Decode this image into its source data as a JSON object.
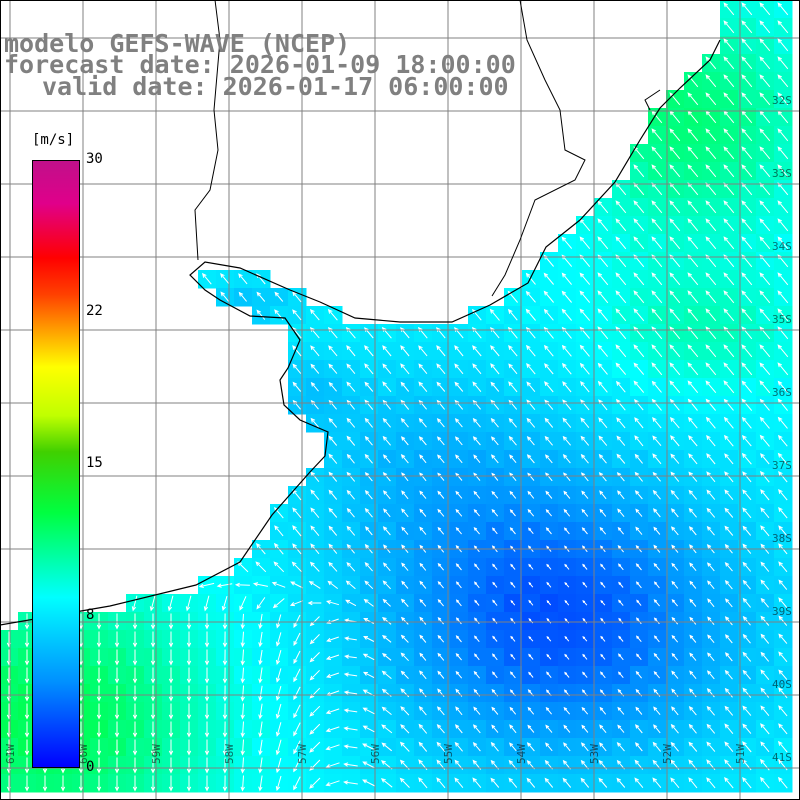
{
  "title": {
    "line1": "modelo GEFS-WAVE (NCEP)",
    "line2": "forecast date: 2026-01-09 18:00:00",
    "line3": "valid date: 2026-01-17 06:00:00"
  },
  "colorbar": {
    "unit": "[m/s]",
    "ticks": [
      "30",
      "22",
      "15",
      "8",
      "0"
    ],
    "min": 0,
    "max": 30,
    "colors": [
      "#0000ff",
      "#0090ff",
      "#00ffff",
      "#00ff40",
      "#40d000",
      "#ffff00",
      "#ff0000",
      "#c0108a"
    ]
  },
  "map": {
    "variable": "wind speed and direction (arrows)",
    "lat_labels": [
      "32S",
      "33S",
      "34S",
      "35S",
      "36S",
      "37S",
      "38S",
      "39S",
      "40S",
      "41S"
    ],
    "lon_labels": [
      "61W",
      "60W",
      "59W",
      "58W",
      "57W",
      "56W",
      "55W",
      "54W",
      "53W",
      "52W",
      "51W"
    ],
    "land_color": "#ffffff",
    "grid_color": "#808080",
    "coast_color": "#000000"
  }
}
